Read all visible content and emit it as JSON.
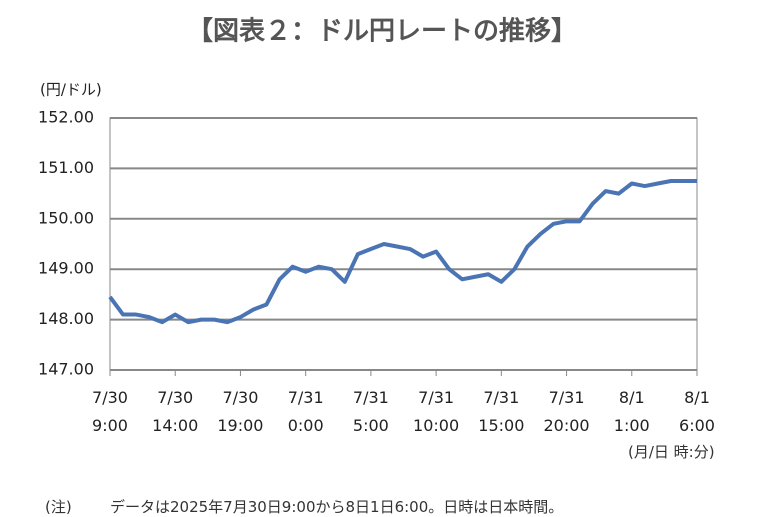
{
  "chart_data": {
    "type": "line",
    "title": "【図表２：ドル円レートの推移】",
    "y_label": "(円/ドル)",
    "x_label": "(月/日 時:分)",
    "note_label": "(注)",
    "note": "データは2025年7月30日9:00から8日1日6:00。日時は日本時間。",
    "categories": [
      "7/30\n9:00",
      null,
      null,
      null,
      null,
      "7/30\n14:00",
      null,
      null,
      null,
      null,
      "7/30\n19:00",
      null,
      null,
      null,
      null,
      "7/31\n0:00",
      null,
      null,
      null,
      null,
      "7/31\n5:00",
      null,
      null,
      null,
      null,
      "7/31\n10:00",
      null,
      null,
      null,
      null,
      "7/31\n15:00",
      null,
      null,
      null,
      null,
      "7/31\n20:00",
      null,
      null,
      null,
      null,
      "8/1\n1:00",
      null,
      null,
      null,
      null,
      "8/1\n6:00"
    ],
    "series": [
      {
        "color": "#4a74b4",
        "values": [
          148.45,
          148.1,
          148.1,
          148.05,
          147.95,
          148.1,
          147.95,
          148.0,
          148.0,
          147.95,
          148.05,
          148.2,
          148.3,
          148.8,
          149.05,
          148.95,
          149.05,
          149.0,
          148.75,
          149.3,
          149.4,
          149.5,
          149.45,
          149.4,
          149.25,
          149.35,
          149.0,
          148.8,
          148.85,
          148.9,
          148.75,
          149.0,
          149.45,
          149.7,
          149.9,
          149.95,
          149.95,
          150.3,
          150.55,
          150.5,
          150.7,
          150.65,
          150.7,
          150.75,
          150.75,
          150.75
        ]
      }
    ],
    "ylim": [
      147,
      152
    ],
    "yticks": [
      {
        "value": 147,
        "label": "147.00"
      },
      {
        "value": 148,
        "label": "148.00"
      },
      {
        "value": 149,
        "label": "149.00"
      },
      {
        "value": 150,
        "label": "150.00"
      },
      {
        "value": 151,
        "label": "151.00"
      },
      {
        "value": 152,
        "label": "152.00"
      }
    ],
    "grid": true
  }
}
